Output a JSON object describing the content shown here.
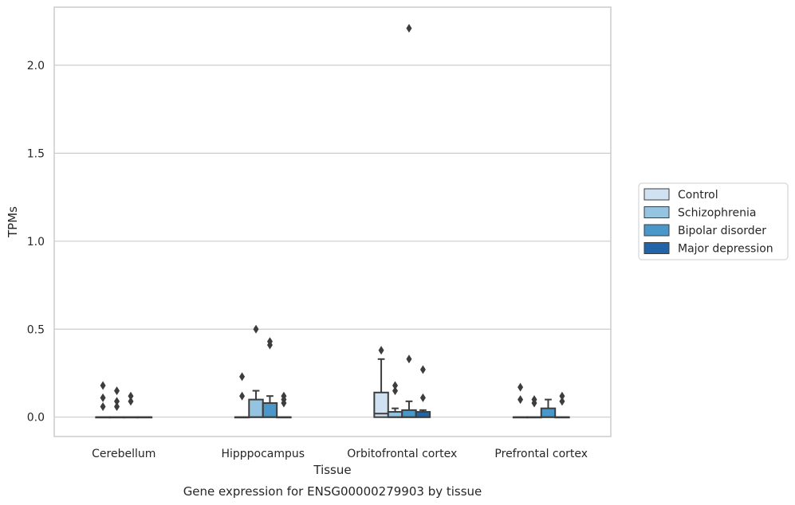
{
  "chart_data": {
    "type": "box",
    "title": "",
    "caption": "Gene expression for ENSG00000279903 by tissue",
    "xlabel": "Tissue",
    "ylabel": "TPMs",
    "ylim": [
      -0.11,
      2.33
    ],
    "yticks": [
      0.0,
      0.5,
      1.0,
      1.5,
      2.0
    ],
    "ytick_labels": [
      "0.0",
      "0.5",
      "1.0",
      "1.5",
      "2.0"
    ],
    "grid": "horizontal",
    "legend_position": "right",
    "categories": [
      "Cerebellum",
      "Hipppocampus",
      "Orbitofrontal cortex",
      "Prefrontal cortex"
    ],
    "series": [
      {
        "name": "Control",
        "color": "#d0e1f2",
        "boxes": [
          {
            "q1": 0,
            "median": 0,
            "q3": 0,
            "whisker_low": 0,
            "whisker_high": 0,
            "outliers": [
              0.06,
              0.11,
              0.18
            ]
          },
          {
            "q1": 0,
            "median": 0,
            "q3": 0,
            "whisker_low": 0,
            "whisker_high": 0,
            "outliers": [
              0.12,
              0.23
            ]
          },
          {
            "q1": 0,
            "median": 0.02,
            "q3": 0.14,
            "whisker_low": 0,
            "whisker_high": 0.33,
            "outliers": [
              0.38
            ]
          },
          {
            "q1": 0,
            "median": 0,
            "q3": 0,
            "whisker_low": 0,
            "whisker_high": 0,
            "outliers": [
              0.1,
              0.17
            ]
          }
        ]
      },
      {
        "name": "Schizophrenia",
        "color": "#94c4df",
        "boxes": [
          {
            "q1": 0,
            "median": 0,
            "q3": 0,
            "whisker_low": 0,
            "whisker_high": 0,
            "outliers": [
              0.06,
              0.09,
              0.15
            ]
          },
          {
            "q1": 0,
            "median": 0,
            "q3": 0.1,
            "whisker_low": 0,
            "whisker_high": 0.15,
            "outliers": [
              0.5
            ]
          },
          {
            "q1": 0,
            "median": 0,
            "q3": 0.03,
            "whisker_low": 0,
            "whisker_high": 0.05,
            "outliers": [
              0.15,
              0.18
            ]
          },
          {
            "q1": 0,
            "median": 0,
            "q3": 0,
            "whisker_low": 0,
            "whisker_high": 0,
            "outliers": [
              0.08,
              0.1
            ]
          }
        ]
      },
      {
        "name": "Bipolar disorder",
        "color": "#4a98c9",
        "boxes": [
          {
            "q1": 0,
            "median": 0,
            "q3": 0,
            "whisker_low": 0,
            "whisker_high": 0,
            "outliers": [
              0.09,
              0.12
            ]
          },
          {
            "q1": 0,
            "median": 0,
            "q3": 0.08,
            "whisker_low": 0,
            "whisker_high": 0.12,
            "outliers": [
              0.41,
              0.43
            ]
          },
          {
            "q1": 0,
            "median": 0,
            "q3": 0.04,
            "whisker_low": 0,
            "whisker_high": 0.09,
            "outliers": [
              0.33,
              2.21
            ]
          },
          {
            "q1": 0,
            "median": 0,
            "q3": 0.05,
            "whisker_low": 0,
            "whisker_high": 0.1,
            "outliers": []
          }
        ]
      },
      {
        "name": "Major depression",
        "color": "#2264a8",
        "boxes": [
          {
            "q1": 0,
            "median": 0,
            "q3": 0,
            "whisker_low": 0,
            "whisker_high": 0,
            "outliers": []
          },
          {
            "q1": 0,
            "median": 0,
            "q3": 0,
            "whisker_low": 0,
            "whisker_high": 0,
            "outliers": [
              0.08,
              0.1,
              0.12
            ]
          },
          {
            "q1": 0,
            "median": 0,
            "q3": 0.03,
            "whisker_low": 0,
            "whisker_high": 0.04,
            "outliers": [
              0.11,
              0.27
            ]
          },
          {
            "q1": 0,
            "median": 0,
            "q3": 0,
            "whisker_low": 0,
            "whisker_high": 0,
            "outliers": [
              0.09,
              0.12
            ]
          }
        ]
      }
    ]
  }
}
